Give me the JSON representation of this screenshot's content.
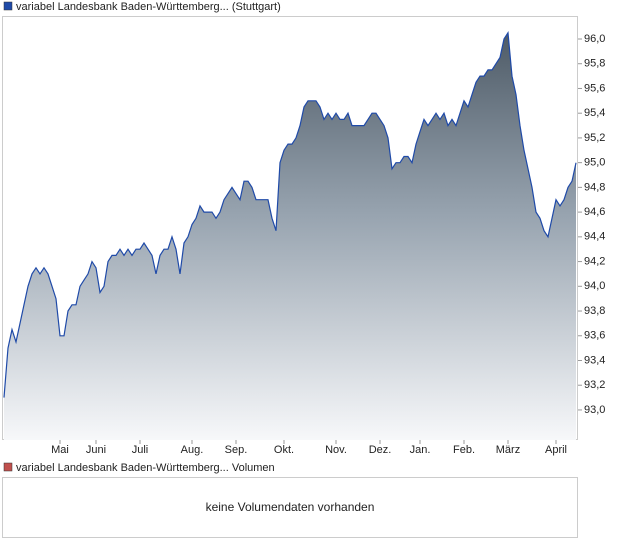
{
  "chart_data": {
    "type": "area",
    "series": [
      {
        "name": "variabel Landesbank Baden-Württemberg... (Stuttgart)",
        "color": "#1f4aa8",
        "values": [
          93.1,
          93.5,
          93.65,
          93.55,
          93.7,
          93.85,
          94.0,
          94.1,
          94.15,
          94.1,
          94.15,
          94.1,
          94.0,
          93.9,
          93.6,
          93.6,
          93.8,
          93.85,
          93.85,
          94.0,
          94.05,
          94.1,
          94.2,
          94.15,
          93.95,
          94.0,
          94.2,
          94.25,
          94.25,
          94.3,
          94.25,
          94.3,
          94.25,
          94.3,
          94.3,
          94.35,
          94.3,
          94.25,
          94.1,
          94.25,
          94.3,
          94.3,
          94.4,
          94.3,
          94.1,
          94.35,
          94.4,
          94.5,
          94.55,
          94.65,
          94.6,
          94.6,
          94.6,
          94.55,
          94.6,
          94.7,
          94.75,
          94.8,
          94.75,
          94.7,
          94.85,
          94.85,
          94.8,
          94.7,
          94.7,
          94.7,
          94.7,
          94.55,
          94.45,
          95.0,
          95.1,
          95.15,
          95.15,
          95.2,
          95.3,
          95.45,
          95.5,
          95.5,
          95.5,
          95.45,
          95.35,
          95.4,
          95.35,
          95.4,
          95.35,
          95.35,
          95.4,
          95.3,
          95.3,
          95.3,
          95.3,
          95.35,
          95.4,
          95.4,
          95.35,
          95.3,
          95.2,
          94.95,
          95.0,
          95.0,
          95.05,
          95.05,
          95.0,
          95.15,
          95.25,
          95.35,
          95.3,
          95.35,
          95.4,
          95.35,
          95.4,
          95.3,
          95.35,
          95.3,
          95.4,
          95.5,
          95.45,
          95.55,
          95.65,
          95.7,
          95.7,
          95.75,
          95.75,
          95.8,
          95.85,
          96.0,
          96.05,
          95.7,
          95.55,
          95.3,
          95.1,
          94.95,
          94.8,
          94.6,
          94.55,
          94.45,
          94.4,
          94.55,
          94.7,
          94.65,
          94.7,
          94.8,
          94.85,
          95.0
        ]
      }
    ],
    "categories": [
      null,
      null,
      null,
      null,
      null,
      null,
      null,
      null,
      null,
      null,
      null,
      null,
      null,
      null,
      "Mai",
      null,
      null,
      null,
      null,
      null,
      null,
      null,
      null,
      "Juni",
      null,
      null,
      null,
      null,
      null,
      null,
      null,
      null,
      null,
      null,
      "Juli",
      null,
      null,
      null,
      null,
      null,
      null,
      null,
      null,
      null,
      null,
      null,
      null,
      "Aug.",
      null,
      null,
      null,
      null,
      null,
      null,
      null,
      null,
      null,
      null,
      "Sep.",
      null,
      null,
      null,
      null,
      null,
      null,
      null,
      null,
      null,
      null,
      null,
      "Okt.",
      null,
      null,
      null,
      null,
      null,
      null,
      null,
      null,
      null,
      null,
      null,
      null,
      "Nov.",
      null,
      null,
      null,
      null,
      null,
      null,
      null,
      null,
      null,
      null,
      "Dez.",
      null,
      null,
      null,
      null,
      null,
      null,
      null,
      null,
      null,
      "Jan.",
      null,
      null,
      null,
      null,
      null,
      null,
      null,
      null,
      null,
      null,
      "Feb.",
      null,
      null,
      null,
      null,
      null,
      null,
      null,
      null,
      null,
      null,
      "März",
      null,
      null,
      null,
      null,
      null,
      null,
      null,
      null,
      null,
      null,
      null,
      "April",
      null,
      null,
      null,
      null,
      null
    ],
    "ylim": [
      92.757,
      96.186
    ],
    "yticks": [
      {
        "value": 93.0,
        "label": "93,0"
      },
      {
        "value": 93.2,
        "label": "93,2"
      },
      {
        "value": 93.4,
        "label": "93,4"
      },
      {
        "value": 93.6,
        "label": "93,6"
      },
      {
        "value": 93.8,
        "label": "93,8"
      },
      {
        "value": 94.0,
        "label": "94,0"
      },
      {
        "value": 94.2,
        "label": "94,2"
      },
      {
        "value": 94.4,
        "label": "94,4"
      },
      {
        "value": 94.6,
        "label": "94,6"
      },
      {
        "value": 94.8,
        "label": "94,8"
      },
      {
        "value": 95.0,
        "label": "95,0"
      },
      {
        "value": 95.2,
        "label": "95,2"
      },
      {
        "value": 95.4,
        "label": "95,4"
      },
      {
        "value": 95.6,
        "label": "95,6"
      },
      {
        "value": 95.8,
        "label": "95,8"
      },
      {
        "value": 96.0,
        "label": "96,0"
      }
    ],
    "grid": false
  },
  "volume_panel": {
    "legend": "variabel Landesbank Baden-Württemberg... Volumen",
    "legend_color": "#c0504d",
    "message": "keine Volumendaten vorhanden"
  }
}
